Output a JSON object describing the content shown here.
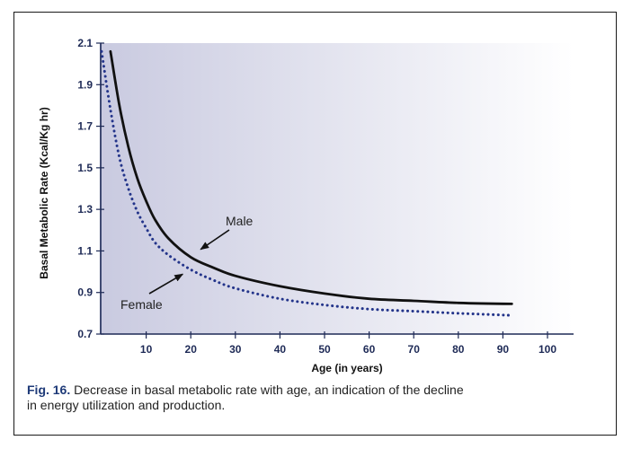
{
  "chart_data": {
    "type": "line",
    "xlabel": "Age (in years)",
    "ylabel": "Basal Metabolic Rate (Kcal/Kg hr)",
    "xlim": [
      0,
      100
    ],
    "ylim": [
      0.7,
      2.1
    ],
    "x_ticks": [
      "10",
      "20",
      "30",
      "40",
      "50",
      "60",
      "70",
      "80",
      "90",
      "100"
    ],
    "y_ticks": [
      "0.7",
      "0.9",
      "1.1",
      "1.3",
      "1.5",
      "1.7",
      "1.9",
      "2.1"
    ],
    "series": [
      {
        "name": "Male",
        "style": "solid",
        "color": "#111111",
        "x": [
          2,
          4,
          6,
          8,
          10,
          12,
          15,
          20,
          25,
          30,
          40,
          50,
          60,
          70,
          80,
          92
        ],
        "y": [
          2.06,
          1.8,
          1.6,
          1.45,
          1.34,
          1.25,
          1.16,
          1.07,
          1.02,
          0.98,
          0.93,
          0.895,
          0.87,
          0.86,
          0.85,
          0.845
        ]
      },
      {
        "name": "Female",
        "style": "dotted",
        "color": "#23348a",
        "x": [
          0,
          2,
          4,
          6,
          8,
          10,
          12,
          15,
          20,
          25,
          30,
          40,
          50,
          60,
          70,
          80,
          92
        ],
        "y": [
          2.06,
          1.78,
          1.55,
          1.4,
          1.29,
          1.21,
          1.14,
          1.08,
          1.01,
          0.96,
          0.92,
          0.87,
          0.84,
          0.82,
          0.81,
          0.8,
          0.79
        ]
      }
    ],
    "annotations": [
      {
        "text": "Male",
        "arrow_to": {
          "x": 21,
          "y": 1.09
        }
      },
      {
        "text": "Female",
        "arrow_to": {
          "x": 19,
          "y": 1.01
        }
      }
    ],
    "background": "gradient #c9cae0 to #ffffff (left to right)",
    "grid": false
  },
  "caption": {
    "label": "Fig. 16.",
    "line1": "Decrease in basal metabolic rate with age, an indication of the decline",
    "line2": "in energy utilization and production."
  }
}
